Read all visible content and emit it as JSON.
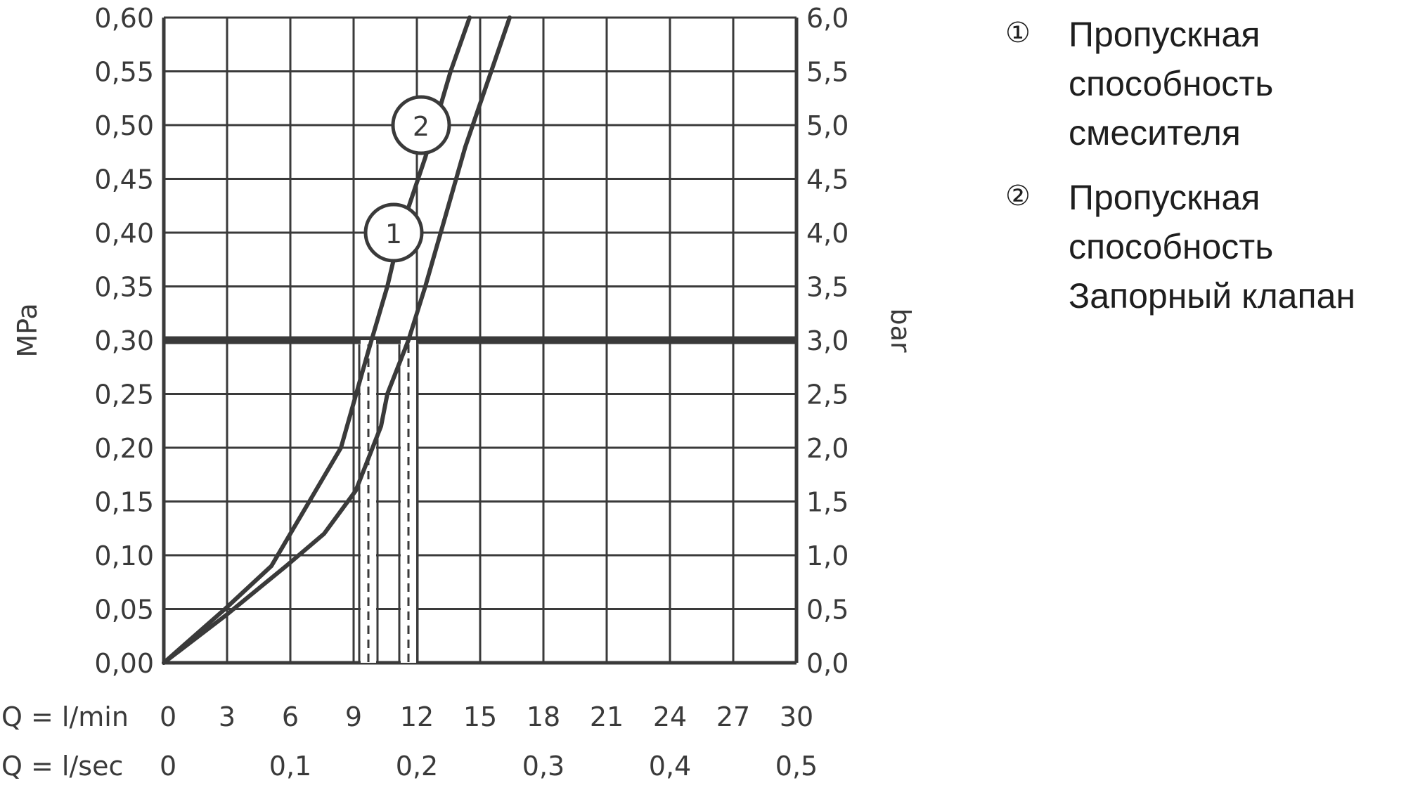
{
  "chart_data": {
    "type": "line",
    "title": "",
    "x_axes": [
      {
        "label": "Q = l/min",
        "ticks": [
          "0",
          "3",
          "6",
          "9",
          "12",
          "15",
          "18",
          "21",
          "24",
          "27",
          "30"
        ],
        "range": [
          0,
          30
        ]
      },
      {
        "label": "Q = l/sec",
        "ticks": [
          "0",
          "0,1",
          "0,2",
          "0,3",
          "0,4",
          "0,5"
        ],
        "range": [
          0,
          0.5
        ]
      }
    ],
    "y_axes": [
      {
        "label": "MPa",
        "ticks": [
          "0,00",
          "0,05",
          "0,10",
          "0,15",
          "0,20",
          "0,25",
          "0,30",
          "0,35",
          "0,40",
          "0,45",
          "0,50",
          "0,55",
          "0,60"
        ],
        "range": [
          0,
          0.6
        ]
      },
      {
        "label": "bar",
        "ticks": [
          "0,0",
          "0,5",
          "1,0",
          "1,5",
          "2,0",
          "2,5",
          "3,0",
          "3,5",
          "4,0",
          "4,5",
          "5,0",
          "5,5",
          "6,0"
        ],
        "range": [
          0,
          6
        ]
      }
    ],
    "grid": true,
    "reference_line": {
      "y": 0.3
    },
    "dashed_markers": [
      {
        "x": 9.7,
        "y": 0.3
      },
      {
        "x": 11.6,
        "y": 0.3
      }
    ],
    "series": [
      {
        "marker": "1",
        "x": [
          0,
          2.9,
          5.1,
          6.0,
          8.4,
          9.7,
          10.6,
          11.2,
          12.4,
          13.6,
          14.5
        ],
        "y": [
          0,
          0.05,
          0.09,
          0.12,
          0.2,
          0.29,
          0.35,
          0.4,
          0.47,
          0.55,
          0.6
        ]
      },
      {
        "marker": "2",
        "x": [
          0,
          3.0,
          5.8,
          7.6,
          9.1,
          9.7,
          10.3,
          10.6,
          11.2,
          11.6,
          12.4,
          14.3,
          16.4
        ],
        "y": [
          0,
          0.045,
          0.09,
          0.12,
          0.16,
          0.19,
          0.22,
          0.25,
          0.28,
          0.3,
          0.35,
          0.48,
          0.6
        ]
      }
    ],
    "legend": {
      "placement": "right",
      "items": [
        {
          "marker": "①",
          "lines": [
            "Пропускная",
            "способность",
            "смесителя"
          ]
        },
        {
          "marker": "②",
          "lines": [
            "Пропускная",
            "способность",
            "Запорный клапан"
          ]
        }
      ]
    }
  }
}
